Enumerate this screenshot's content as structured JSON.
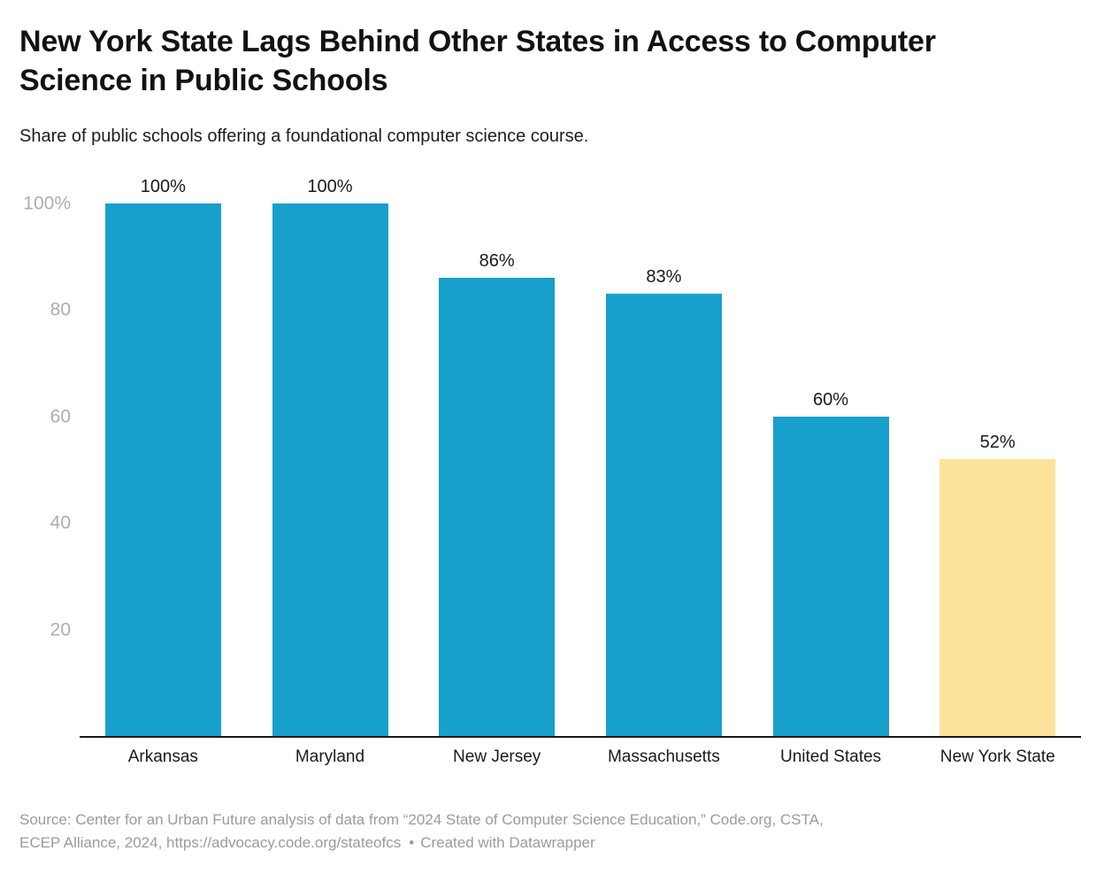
{
  "chart_data": {
    "type": "bar",
    "title": "New York State Lags Behind Other States in Access to Computer Science in Public Schools",
    "subtitle": "Share of public schools offering a foundational computer science course.",
    "categories": [
      "Arkansas",
      "Maryland",
      "New Jersey",
      "Massachusetts",
      "United States",
      "New York State"
    ],
    "values": [
      100,
      100,
      86,
      83,
      60,
      52
    ],
    "value_labels": [
      "100%",
      "100%",
      "86%",
      "83%",
      "60%",
      "52%"
    ],
    "ylim": [
      0,
      100
    ],
    "y_ticks": [
      {
        "value": 100,
        "label": "100%"
      },
      {
        "value": 80,
        "label": "80"
      },
      {
        "value": 60,
        "label": "60"
      },
      {
        "value": 40,
        "label": "40"
      },
      {
        "value": 20,
        "label": "20"
      }
    ],
    "grid": false,
    "legend": "none",
    "highlighted_categories": [
      "New York State"
    ],
    "colors": {
      "bar_default": "#18A0CC",
      "bar_highlight": "#FDE29C",
      "axis_tick_label": "#ADADAD",
      "baseline": "#1A1A1A",
      "value_label": "#1A1A1A",
      "category_label": "#1A1A1A"
    }
  },
  "footer": {
    "line1": "Source: Center for an Urban Future analysis of data from “2024 State of Computer Science Education,” Code.org, CSTA,",
    "line2": "ECEP Alliance, 2024, https://advocacy.code.org/stateofcs",
    "bullet": "•",
    "credit": "Created with Datawrapper"
  }
}
